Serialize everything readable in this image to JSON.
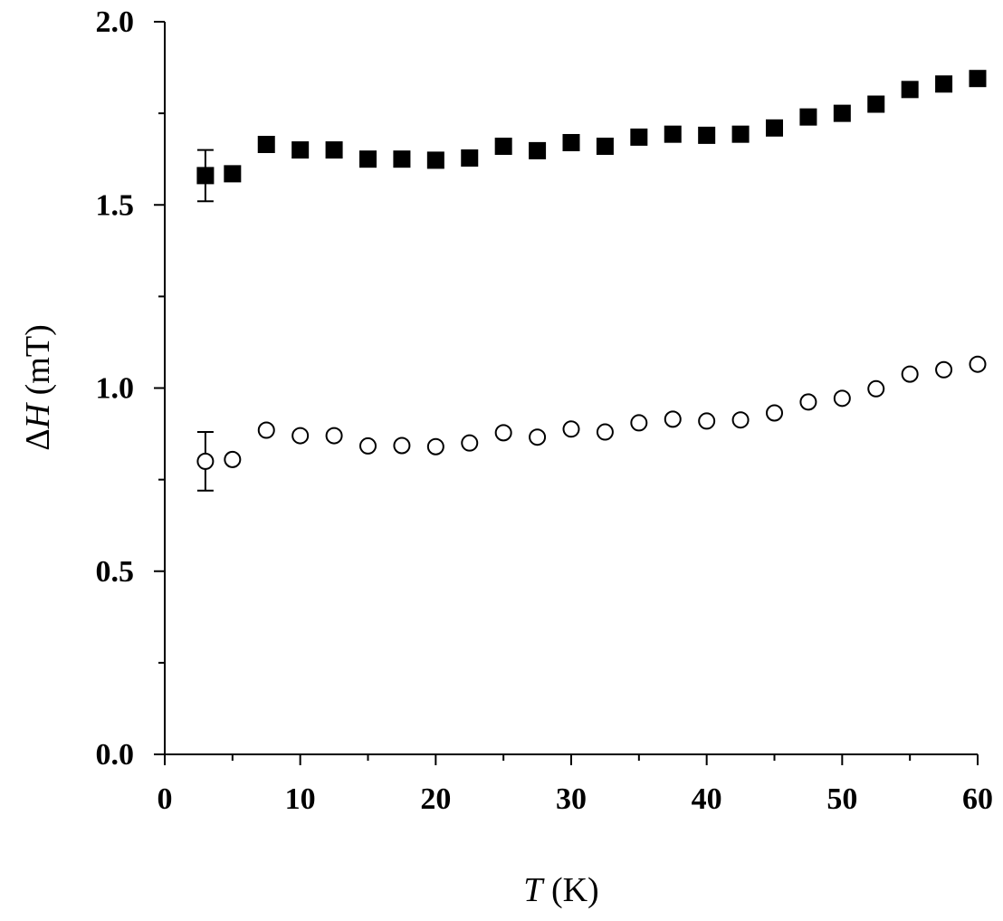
{
  "chart_data": {
    "type": "scatter",
    "xlabel": {
      "symbol": "T",
      "unit": " (K)"
    },
    "ylabel": {
      "symbol_prefix": "Δ",
      "symbol": "H",
      "unit": " (mT)"
    },
    "xlim": [
      0,
      60
    ],
    "ylim": [
      0.0,
      2.0
    ],
    "xticks": [
      "0",
      "10",
      "20",
      "30",
      "40",
      "50",
      "60"
    ],
    "yticks": [
      "0.0",
      "0.5",
      "1.0",
      "1.5",
      "2.0"
    ],
    "grid": false,
    "series": [
      {
        "marker": "filled-square",
        "color": "#000000",
        "x": [
          3,
          5,
          7.5,
          10,
          12.5,
          15,
          17.5,
          20,
          22.5,
          25,
          27.5,
          30,
          32.5,
          35,
          37.5,
          40,
          42.5,
          45,
          47.5,
          50,
          52.5,
          55,
          57.5,
          60
        ],
        "y": [
          1.58,
          1.585,
          1.665,
          1.65,
          1.65,
          1.625,
          1.625,
          1.622,
          1.628,
          1.66,
          1.648,
          1.67,
          1.66,
          1.685,
          1.693,
          1.69,
          1.693,
          1.71,
          1.74,
          1.75,
          1.775,
          1.815,
          1.83,
          1.845
        ],
        "error_bar": {
          "x": 3,
          "low": 1.51,
          "high": 1.65
        }
      },
      {
        "marker": "open-circle",
        "color": "#000000",
        "x": [
          3,
          5,
          7.5,
          10,
          12.5,
          15,
          17.5,
          20,
          22.5,
          25,
          27.5,
          30,
          32.5,
          35,
          37.5,
          40,
          42.5,
          45,
          47.5,
          50,
          52.5,
          55,
          57.5,
          60
        ],
        "y": [
          0.8,
          0.805,
          0.885,
          0.87,
          0.87,
          0.842,
          0.843,
          0.84,
          0.85,
          0.878,
          0.866,
          0.888,
          0.88,
          0.905,
          0.915,
          0.91,
          0.913,
          0.932,
          0.962,
          0.972,
          0.998,
          1.038,
          1.05,
          1.065
        ],
        "error_bar": {
          "x": 3,
          "low": 0.72,
          "high": 0.88
        }
      }
    ]
  }
}
